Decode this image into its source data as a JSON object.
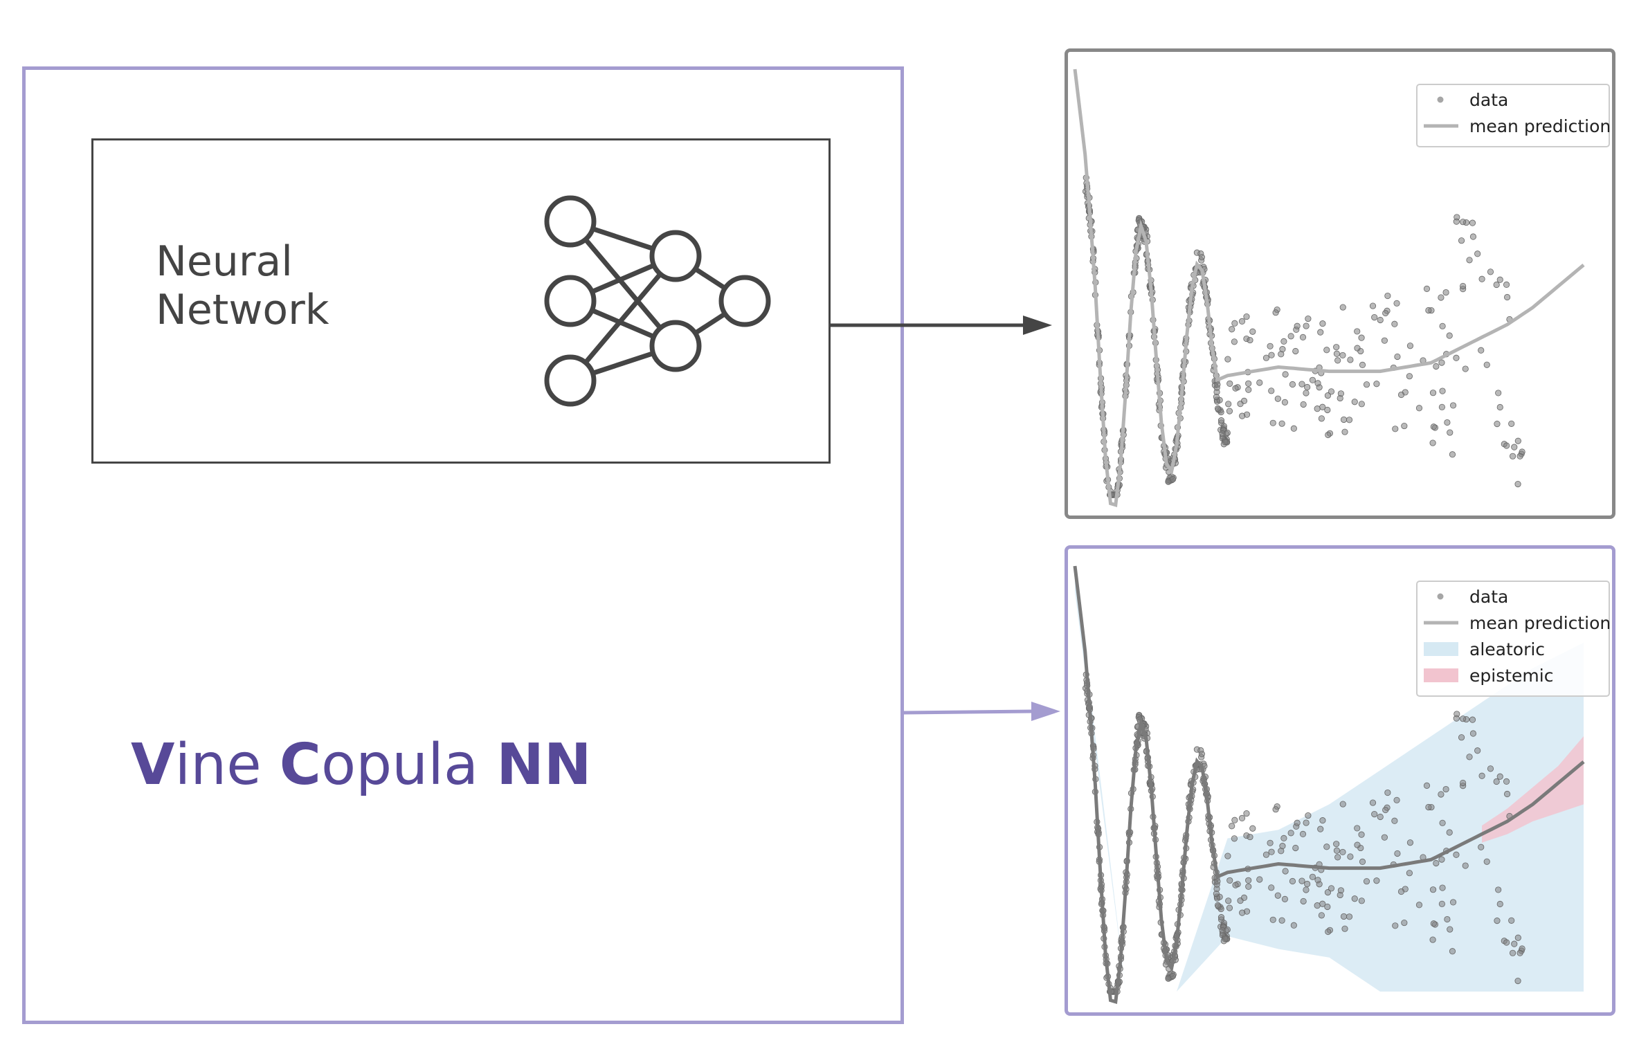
{
  "neural_network": {
    "label_line1": "Neural",
    "label_line2": "Network",
    "icon": "neural-network-icon",
    "layers": [
      3,
      2,
      1
    ]
  },
  "vine_copula": {
    "title_parts": [
      {
        "text": "V",
        "bold": true
      },
      {
        "text": "ine ",
        "bold": false
      },
      {
        "text": "C",
        "bold": true
      },
      {
        "text": "opula ",
        "bold": false
      },
      {
        "text": "NN",
        "bold": true
      }
    ]
  },
  "colors": {
    "accent_purple": "#a49cd0",
    "title_purple": "#574998",
    "dark_gray": "#454545",
    "data_points": "#808080",
    "mean_light": "#b4b4b4",
    "mean_dark": "#7a7a7a",
    "aleatoric": "#d6e9f3",
    "epistemic": "#f2c4cf"
  },
  "plots": {
    "top": {
      "legend": [
        {
          "label": "data",
          "kind": "point"
        },
        {
          "label": "mean prediction",
          "kind": "line"
        }
      ]
    },
    "bottom": {
      "legend": [
        {
          "label": "data",
          "kind": "point"
        },
        {
          "label": "mean prediction",
          "kind": "line"
        },
        {
          "label": "aleatoric",
          "kind": "patch",
          "color": "#d6e9f3"
        },
        {
          "label": "epistemic",
          "kind": "patch",
          "color": "#f2c4cf"
        }
      ]
    }
  },
  "chart_data": {
    "type": "scatter",
    "xlim": [
      0,
      1
    ],
    "ylim": [
      0,
      1
    ],
    "series": [
      {
        "name": "mean prediction",
        "x": [
          0.0,
          0.02,
          0.04,
          0.06,
          0.08,
          0.1,
          0.12,
          0.14,
          0.16,
          0.18,
          0.2,
          0.22,
          0.24,
          0.26,
          0.28,
          0.3,
          0.35,
          0.4,
          0.5,
          0.6,
          0.7,
          0.75,
          0.8,
          0.85,
          0.9,
          0.95,
          1.0
        ],
        "y": [
          1.0,
          0.8,
          0.58,
          0.4,
          0.25,
          0.24,
          0.28,
          0.36,
          0.45,
          0.5,
          0.48,
          0.38,
          0.28,
          0.25,
          0.27,
          0.28,
          0.29,
          0.3,
          0.29,
          0.29,
          0.31,
          0.34,
          0.37,
          0.4,
          0.44,
          0.49,
          0.54
        ]
      },
      {
        "name": "aleatoric",
        "x": [
          0.0,
          0.1,
          0.2,
          0.3,
          0.4,
          0.5,
          0.6,
          0.7,
          0.8,
          0.9,
          1.0
        ],
        "lower": [
          0.94,
          0.0,
          0.0,
          0.13,
          0.1,
          0.08,
          0.0,
          0.0,
          0.0,
          0.0,
          0.0
        ],
        "upper": [
          1.0,
          0.0,
          0.0,
          0.36,
          0.38,
          0.44,
          0.52,
          0.6,
          0.68,
          0.76,
          0.82
        ]
      },
      {
        "name": "epistemic",
        "x": [
          0.8,
          0.85,
          0.9,
          0.95,
          1.0
        ],
        "lower": [
          0.35,
          0.37,
          0.4,
          0.42,
          0.44
        ],
        "upper": [
          0.39,
          0.43,
          0.48,
          0.53,
          0.6
        ]
      }
    ]
  }
}
